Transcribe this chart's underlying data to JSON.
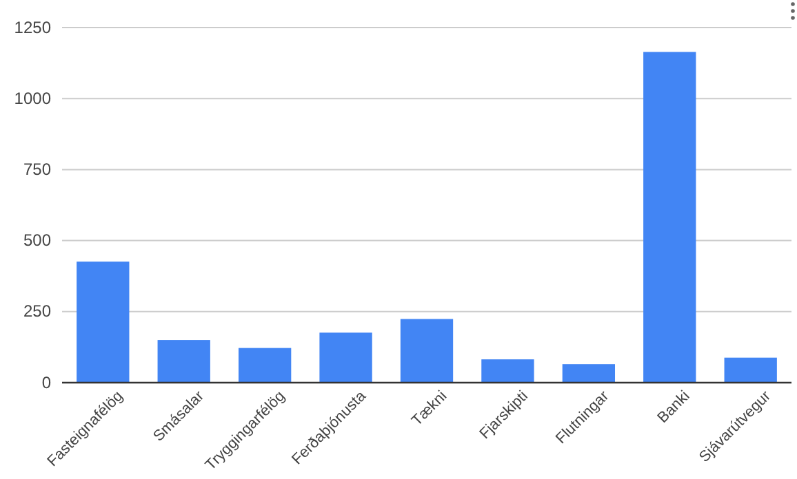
{
  "chart_data": {
    "type": "bar",
    "categories": [
      "Fasteignafélög",
      "Smásalar",
      "Tryggingarfélög",
      "Ferðaþjónusta",
      "Tækni",
      "Fjarskipti",
      "Flutningar",
      "Banki",
      "Sjávarútvegur"
    ],
    "values": [
      426,
      150,
      122,
      176,
      224,
      82,
      65,
      1164,
      88
    ],
    "color": "#4285f4",
    "ylim": [
      0,
      1250
    ],
    "yticks": [
      0,
      250,
      500,
      750,
      1000,
      1250
    ],
    "grid": "y"
  }
}
